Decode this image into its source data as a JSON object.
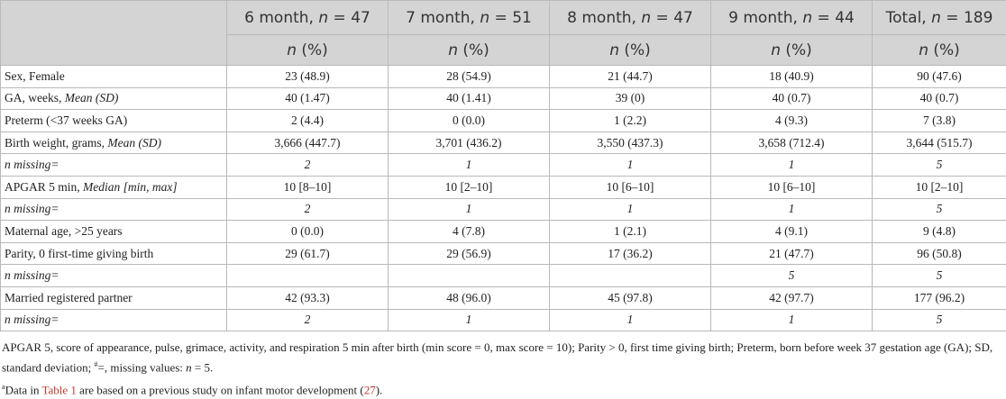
{
  "table": {
    "columns": [
      [
        {
          "text": "6 month, "
        },
        {
          "text": "n",
          "italic": true
        },
        {
          "text": " = 47"
        }
      ],
      [
        {
          "text": "7 month, "
        },
        {
          "text": "n",
          "italic": true
        },
        {
          "text": " = 51"
        }
      ],
      [
        {
          "text": "8 month, "
        },
        {
          "text": "n",
          "italic": true
        },
        {
          "text": " = 47"
        }
      ],
      [
        {
          "text": "9 month, "
        },
        {
          "text": "n",
          "italic": true
        },
        {
          "text": " = 44"
        }
      ],
      [
        {
          "text": "Total, "
        },
        {
          "text": "n",
          "italic": true
        },
        {
          "text": " = 189"
        }
      ]
    ],
    "subheader": [
      {
        "text": "n",
        "italic": true
      },
      {
        "text": " (%)"
      }
    ],
    "rows": [
      {
        "label": [
          {
            "text": "Sex, Female"
          }
        ],
        "cells": [
          "23 (48.9)",
          "28 (54.9)",
          "21 (44.7)",
          "18 (40.9)",
          "90 (47.6)"
        ]
      },
      {
        "label": [
          {
            "text": "GA, weeks, "
          },
          {
            "text": "Mean (SD)",
            "italic": true
          }
        ],
        "cells": [
          "40 (1.47)",
          "40 (1.41)",
          "39 (0)",
          "40 (0.7)",
          "40 (0.7)"
        ]
      },
      {
        "label": [
          {
            "text": "Preterm (<37 weeks GA)"
          }
        ],
        "cells": [
          "2 (4.4)",
          "0 (0.0)",
          "1 (2.2)",
          "4 (9.3)",
          "7 (3.8)"
        ]
      },
      {
        "label": [
          {
            "text": "Birth weight, grams, "
          },
          {
            "text": "Mean (SD)",
            "italic": true
          }
        ],
        "cells": [
          "3,666 (447.7)",
          "3,701 (436.2)",
          "3,550 (437.3)",
          "3,658 (712.4)",
          "3,644 (515.7)"
        ]
      },
      {
        "label": [
          {
            "text": "n missing=",
            "italic": true
          }
        ],
        "italic": true,
        "cells": [
          "2",
          "1",
          "1",
          "1",
          "5"
        ]
      },
      {
        "label": [
          {
            "text": "APGAR 5 min, "
          },
          {
            "text": "Median [min, max]",
            "italic": true
          }
        ],
        "cells": [
          "10 [8–10]",
          "10 [2–10]",
          "10 [6–10]",
          "10 [6–10]",
          "10 [2–10]"
        ]
      },
      {
        "label": [
          {
            "text": "n missing=",
            "italic": true
          }
        ],
        "italic": true,
        "cells": [
          "2",
          "1",
          "1",
          "1",
          "5"
        ]
      },
      {
        "label": [
          {
            "text": "Maternal age, >25 years"
          }
        ],
        "cells": [
          "0 (0.0)",
          "4 (7.8)",
          "1 (2.1)",
          "4 (9.1)",
          "9 (4.8)"
        ]
      },
      {
        "label": [
          {
            "text": "Parity, 0 first-time giving birth"
          }
        ],
        "cells": [
          "29 (61.7)",
          "29 (56.9)",
          "17 (36.2)",
          "21 (47.7)",
          "96 (50.8)"
        ]
      },
      {
        "label": [
          {
            "text": "n missing=",
            "italic": true
          }
        ],
        "italic": true,
        "cells": [
          null,
          null,
          null,
          "5",
          "5"
        ]
      },
      {
        "label": [
          {
            "text": "Married registered partner"
          }
        ],
        "cells": [
          "42 (93.3)",
          "48 (96.0)",
          "45 (97.8)",
          "42 (97.7)",
          "177 (96.2)"
        ]
      },
      {
        "label": [
          {
            "text": "n missing=",
            "italic": true
          }
        ],
        "italic": true,
        "cells": [
          "2",
          "1",
          "1",
          "1",
          "5"
        ]
      }
    ]
  },
  "notes": [
    [
      {
        "text": "APGAR 5, score of appearance, pulse, grimace, activity, and respiration 5 min after birth (min score = 0, max score = 10); Parity > 0, first time giving birth; Preterm, born before week 37 gestation age (GA); SD, standard deviation; "
      },
      {
        "text": "#",
        "style": "sup"
      },
      {
        "text": "=, missing values: "
      },
      {
        "text": "n",
        "italic": true
      },
      {
        "text": " = 5."
      }
    ],
    [
      {
        "text": "a",
        "style": "sup"
      },
      {
        "text": "Data in "
      },
      {
        "text": "Table 1",
        "style": "link"
      },
      {
        "text": " are based on a previous study on infant motor development ("
      },
      {
        "text": "27",
        "style": "link"
      },
      {
        "text": ")."
      }
    ]
  ]
}
